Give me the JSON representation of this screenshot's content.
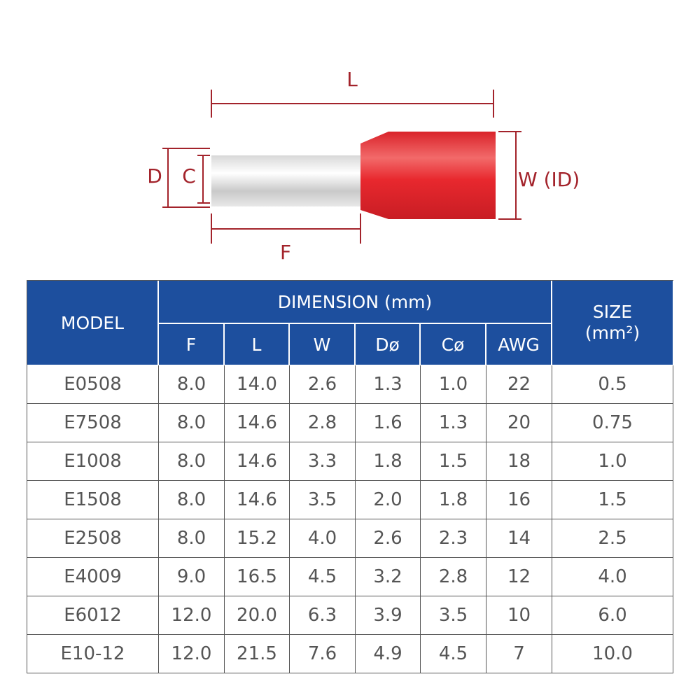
{
  "diagram": {
    "labels": {
      "length": "L",
      "outer_diameter": "D",
      "inner_diameter": "C",
      "width": "W (ID)",
      "tube_length": "F"
    }
  },
  "table": {
    "header": {
      "model": "MODEL",
      "dimension": "DIMENSION (mm)",
      "size": "SIZE",
      "size_unit": "(mm²)",
      "columns": [
        "F",
        "L",
        "W",
        "Dø",
        "Cø",
        "AWG"
      ]
    },
    "rows": [
      [
        "E0508",
        "8.0",
        "14.0",
        "2.6",
        "1.3",
        "1.0",
        "22",
        "0.5"
      ],
      [
        "E7508",
        "8.0",
        "14.6",
        "2.8",
        "1.6",
        "1.3",
        "20",
        "0.75"
      ],
      [
        "E1008",
        "8.0",
        "14.6",
        "3.3",
        "1.8",
        "1.5",
        "18",
        "1.0"
      ],
      [
        "E1508",
        "8.0",
        "14.6",
        "3.5",
        "2.0",
        "1.8",
        "16",
        "1.5"
      ],
      [
        "E2508",
        "8.0",
        "15.2",
        "4.0",
        "2.6",
        "2.3",
        "14",
        "2.5"
      ],
      [
        "E4009",
        "9.0",
        "16.5",
        "4.5",
        "3.2",
        "2.8",
        "12",
        "4.0"
      ],
      [
        "E6012",
        "12.0",
        "20.0",
        "6.3",
        "3.9",
        "3.5",
        "10",
        "6.0"
      ],
      [
        "E10-12",
        "12.0",
        "21.5",
        "7.6",
        "4.9",
        "4.5",
        "7",
        "10.0"
      ]
    ]
  }
}
